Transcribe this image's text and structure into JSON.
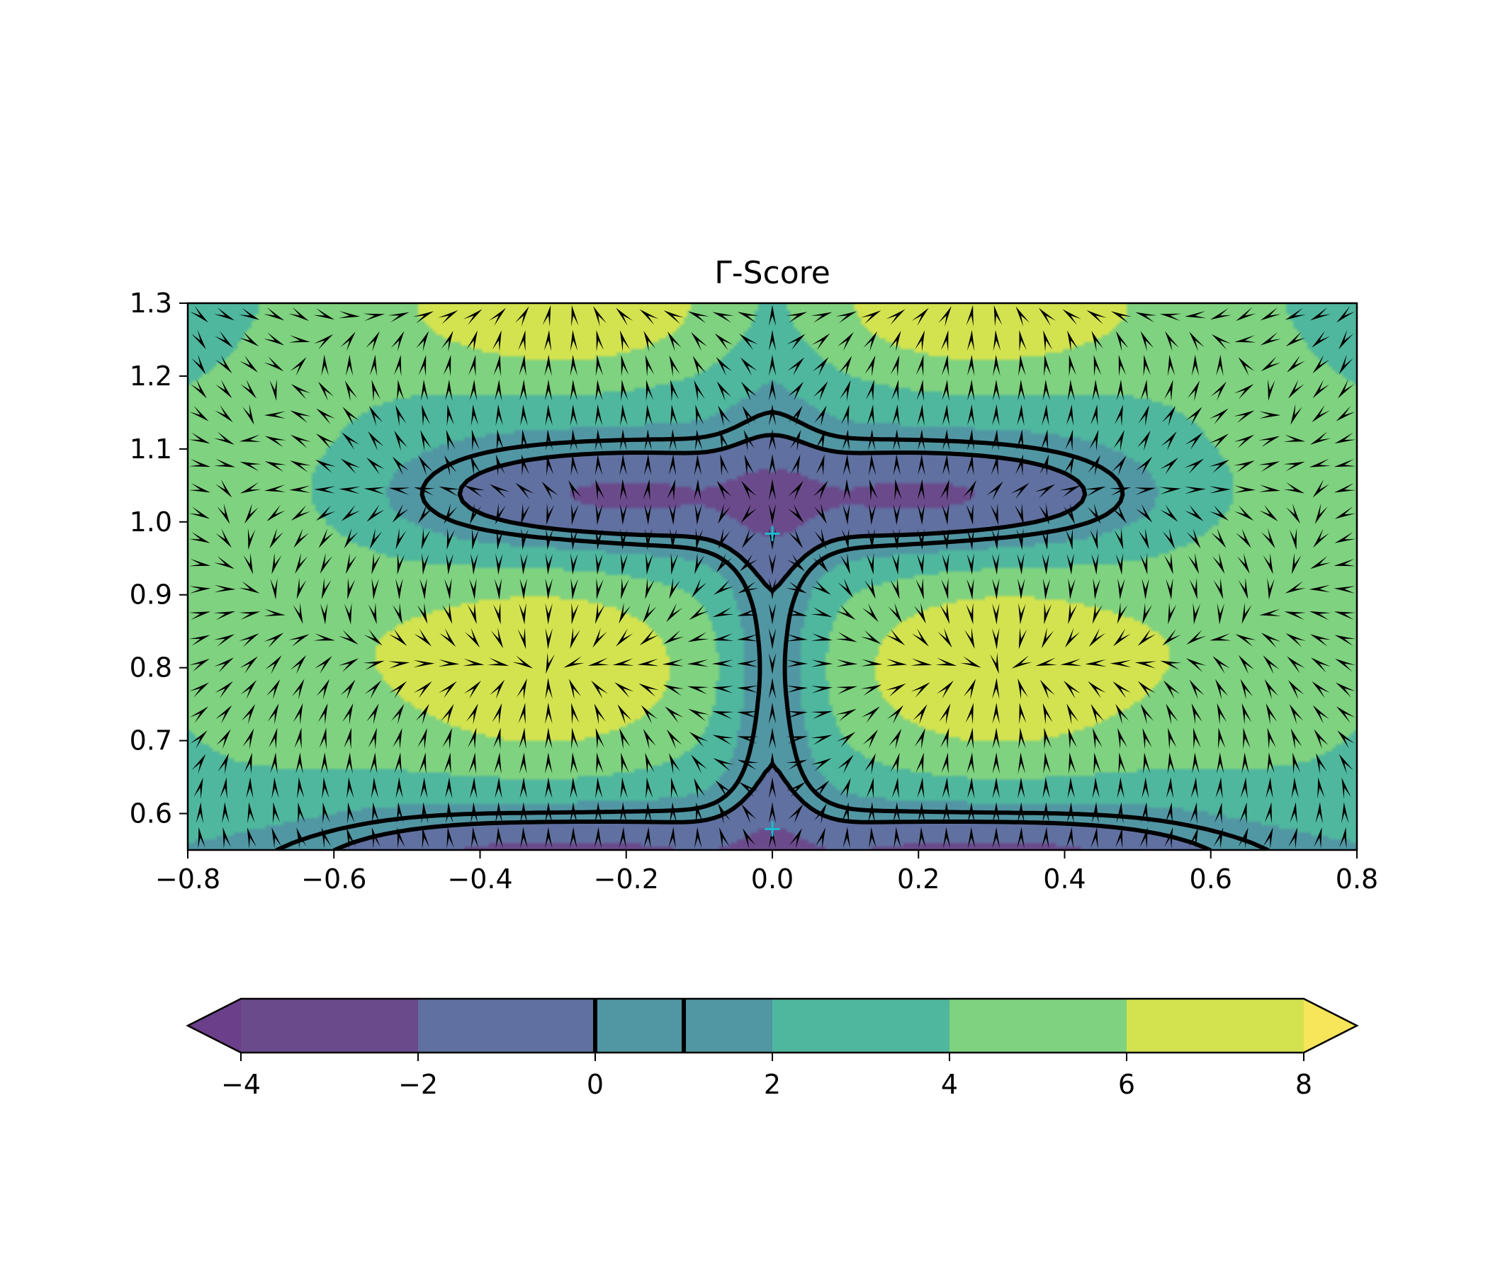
{
  "chart_data": {
    "type": "heatmap",
    "title": "Γ-Score",
    "xlabel": "",
    "ylabel": "",
    "xlim": [
      -0.8,
      0.8
    ],
    "ylim": [
      0.55,
      1.3
    ],
    "x_ticks": [
      "−0.8",
      "−0.6",
      "−0.4",
      "−0.2",
      "0.0",
      "0.2",
      "0.4",
      "0.6",
      "0.8"
    ],
    "x_tick_values": [
      -0.8,
      -0.6,
      -0.4,
      -0.2,
      0.0,
      0.2,
      0.4,
      0.6,
      0.8
    ],
    "y_ticks": [
      "0.6",
      "0.7",
      "0.8",
      "0.9",
      "1.0",
      "1.1",
      "1.2",
      "1.3"
    ],
    "y_tick_values": [
      0.6,
      0.7,
      0.8,
      0.9,
      1.0,
      1.1,
      1.2,
      1.3
    ],
    "filled_contour_levels": [
      -4,
      -2,
      0,
      2,
      4,
      6,
      8
    ],
    "level_colors": [
      "#6b3f89",
      "#6b4a8c",
      "#6070a0",
      "#5196a3",
      "#4fb79e",
      "#7fd27f",
      "#d3e34f",
      "#f7e55a"
    ],
    "extend": "both",
    "line_contour_levels": [
      0,
      1
    ],
    "line_contour_color": "#000000",
    "quiver_field": true,
    "markers": [
      {
        "x": 0.0,
        "y": 0.985,
        "symbol": "+",
        "color": "#17becf"
      },
      {
        "x": 0.0,
        "y": 0.58,
        "symbol": "+",
        "color": "#17becf"
      }
    ],
    "colorbar": {
      "orientation": "horizontal",
      "ticks": [
        "−4",
        "−2",
        "0",
        "2",
        "4",
        "6",
        "8"
      ],
      "tick_values": [
        -4,
        -2,
        0,
        2,
        4,
        6,
        8
      ],
      "lines_at": [
        0,
        1
      ]
    }
  }
}
